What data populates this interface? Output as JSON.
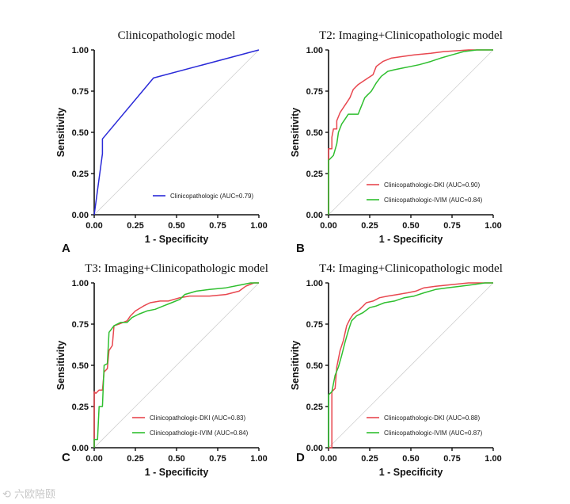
{
  "chart_data": [
    {
      "type": "line",
      "panel_label": "A",
      "title": "Clinicopathologic model",
      "xlabel": "1 - Specificity",
      "ylabel": "Sensitivity",
      "xlim": [
        0,
        1
      ],
      "ylim": [
        0,
        1
      ],
      "tick_labels": [
        "0.00",
        "0.25",
        "0.50",
        "0.75",
        "1.00"
      ],
      "legend_position": "bottom-right",
      "series": [
        {
          "name": "Clinicopathologic (AUC=0.79)",
          "color": "#2a2ad8",
          "points": [
            [
              0,
              0
            ],
            [
              0.05,
              0.37
            ],
            [
              0.05,
              0.46
            ],
            [
              0.36,
              0.83
            ],
            [
              1,
              1
            ]
          ]
        }
      ]
    },
    {
      "type": "line",
      "panel_label": "B",
      "title": "T2: Imaging+Clinicopathologic model",
      "xlabel": "1 - Specificity",
      "ylabel": "Sensitivity",
      "xlim": [
        0,
        1
      ],
      "ylim": [
        0,
        1
      ],
      "tick_labels": [
        "0.00",
        "0.25",
        "0.50",
        "0.75",
        "1.00"
      ],
      "legend_position": "bottom-right",
      "series": [
        {
          "name": "Clinicopathologic-DKI (AUC=0.90)",
          "color": "#e8474f",
          "points": [
            [
              0,
              0
            ],
            [
              0,
              0.4
            ],
            [
              0.02,
              0.4
            ],
            [
              0.02,
              0.47
            ],
            [
              0.03,
              0.52
            ],
            [
              0.05,
              0.52
            ],
            [
              0.05,
              0.57
            ],
            [
              0.07,
              0.62
            ],
            [
              0.09,
              0.65
            ],
            [
              0.11,
              0.68
            ],
            [
              0.13,
              0.71
            ],
            [
              0.15,
              0.76
            ],
            [
              0.18,
              0.79
            ],
            [
              0.21,
              0.81
            ],
            [
              0.24,
              0.83
            ],
            [
              0.27,
              0.85
            ],
            [
              0.29,
              0.9
            ],
            [
              0.33,
              0.93
            ],
            [
              0.38,
              0.95
            ],
            [
              0.45,
              0.96
            ],
            [
              0.52,
              0.97
            ],
            [
              0.62,
              0.98
            ],
            [
              0.7,
              0.99
            ],
            [
              0.85,
              1.0
            ],
            [
              1,
              1
            ]
          ]
        },
        {
          "name": "Clinicopathologic-IVIM (AUC=0.84)",
          "color": "#2fbf2f",
          "points": [
            [
              0,
              0
            ],
            [
              0,
              0.33
            ],
            [
              0.03,
              0.36
            ],
            [
              0.05,
              0.43
            ],
            [
              0.06,
              0.5
            ],
            [
              0.08,
              0.55
            ],
            [
              0.1,
              0.58
            ],
            [
              0.12,
              0.61
            ],
            [
              0.18,
              0.61
            ],
            [
              0.2,
              0.66
            ],
            [
              0.22,
              0.71
            ],
            [
              0.24,
              0.73
            ],
            [
              0.26,
              0.75
            ],
            [
              0.29,
              0.8
            ],
            [
              0.32,
              0.84
            ],
            [
              0.36,
              0.87
            ],
            [
              0.4,
              0.88
            ],
            [
              0.45,
              0.89
            ],
            [
              0.5,
              0.9
            ],
            [
              0.55,
              0.91
            ],
            [
              0.62,
              0.93
            ],
            [
              0.68,
              0.95
            ],
            [
              0.75,
              0.97
            ],
            [
              0.82,
              0.99
            ],
            [
              0.9,
              1.0
            ],
            [
              1,
              1
            ]
          ]
        }
      ]
    },
    {
      "type": "line",
      "panel_label": "C",
      "title": "T3: Imaging+Clinicopathologic model",
      "xlabel": "1 - Specificity",
      "ylabel": "Sensitivity",
      "xlim": [
        0,
        1
      ],
      "ylim": [
        0,
        1
      ],
      "tick_labels": [
        "0.00",
        "0.25",
        "0.50",
        "0.75",
        "1.00"
      ],
      "legend_position": "bottom-right",
      "series": [
        {
          "name": "Clinicopathologic-DKI (AUC=0.83)",
          "color": "#e8474f",
          "points": [
            [
              0,
              0
            ],
            [
              0,
              0.34
            ],
            [
              0.01,
              0.33
            ],
            [
              0.03,
              0.35
            ],
            [
              0.05,
              0.35
            ],
            [
              0.06,
              0.46
            ],
            [
              0.08,
              0.48
            ],
            [
              0.09,
              0.59
            ],
            [
              0.11,
              0.62
            ],
            [
              0.12,
              0.74
            ],
            [
              0.15,
              0.75
            ],
            [
              0.2,
              0.77
            ],
            [
              0.22,
              0.8
            ],
            [
              0.25,
              0.83
            ],
            [
              0.3,
              0.86
            ],
            [
              0.34,
              0.88
            ],
            [
              0.4,
              0.89
            ],
            [
              0.45,
              0.89
            ],
            [
              0.52,
              0.91
            ],
            [
              0.58,
              0.92
            ],
            [
              0.7,
              0.92
            ],
            [
              0.8,
              0.93
            ],
            [
              0.88,
              0.95
            ],
            [
              0.92,
              0.98
            ],
            [
              0.97,
              1.0
            ],
            [
              1,
              1
            ]
          ]
        },
        {
          "name": "Clinicopathologic-IVIM (AUC=0.84)",
          "color": "#2fbf2f",
          "points": [
            [
              0,
              0
            ],
            [
              0,
              0.05
            ],
            [
              0.02,
              0.05
            ],
            [
              0.03,
              0.25
            ],
            [
              0.05,
              0.25
            ],
            [
              0.06,
              0.5
            ],
            [
              0.08,
              0.51
            ],
            [
              0.09,
              0.7
            ],
            [
              0.12,
              0.74
            ],
            [
              0.16,
              0.76
            ],
            [
              0.2,
              0.76
            ],
            [
              0.23,
              0.79
            ],
            [
              0.27,
              0.81
            ],
            [
              0.32,
              0.83
            ],
            [
              0.37,
              0.84
            ],
            [
              0.42,
              0.86
            ],
            [
              0.47,
              0.88
            ],
            [
              0.52,
              0.9
            ],
            [
              0.55,
              0.93
            ],
            [
              0.62,
              0.95
            ],
            [
              0.7,
              0.96
            ],
            [
              0.8,
              0.97
            ],
            [
              0.9,
              0.99
            ],
            [
              0.95,
              1.0
            ],
            [
              1,
              1
            ]
          ]
        }
      ]
    },
    {
      "type": "line",
      "panel_label": "D",
      "title": "T4: Imaging+Clinicopathologic model",
      "xlabel": "1 - Specificity",
      "ylabel": "Sensitivity",
      "xlim": [
        0,
        1
      ],
      "ylim": [
        0,
        1
      ],
      "tick_labels": [
        "0.00",
        "0.25",
        "0.50",
        "0.75",
        "1.00"
      ],
      "legend_position": "bottom-right",
      "series": [
        {
          "name": "Clinicopathologic-DKI (AUC=0.88)",
          "color": "#e8474f",
          "points": [
            [
              0,
              0
            ],
            [
              0.02,
              0
            ],
            [
              0.02,
              0.34
            ],
            [
              0.04,
              0.36
            ],
            [
              0.05,
              0.49
            ],
            [
              0.07,
              0.59
            ],
            [
              0.09,
              0.65
            ],
            [
              0.11,
              0.74
            ],
            [
              0.13,
              0.78
            ],
            [
              0.15,
              0.81
            ],
            [
              0.19,
              0.84
            ],
            [
              0.23,
              0.88
            ],
            [
              0.27,
              0.89
            ],
            [
              0.31,
              0.91
            ],
            [
              0.36,
              0.92
            ],
            [
              0.42,
              0.93
            ],
            [
              0.48,
              0.94
            ],
            [
              0.53,
              0.95
            ],
            [
              0.58,
              0.97
            ],
            [
              0.65,
              0.98
            ],
            [
              0.75,
              0.99
            ],
            [
              0.85,
              1.0
            ],
            [
              1,
              1
            ]
          ]
        },
        {
          "name": "Clinicopathologic-IVIM (AUC=0.87)",
          "color": "#2fbf2f",
          "points": [
            [
              0,
              0
            ],
            [
              0,
              0.32
            ],
            [
              0.02,
              0.34
            ],
            [
              0.04,
              0.44
            ],
            [
              0.06,
              0.49
            ],
            [
              0.08,
              0.56
            ],
            [
              0.1,
              0.64
            ],
            [
              0.12,
              0.71
            ],
            [
              0.14,
              0.77
            ],
            [
              0.17,
              0.8
            ],
            [
              0.21,
              0.82
            ],
            [
              0.25,
              0.85
            ],
            [
              0.29,
              0.86
            ],
            [
              0.34,
              0.88
            ],
            [
              0.4,
              0.89
            ],
            [
              0.46,
              0.91
            ],
            [
              0.52,
              0.92
            ],
            [
              0.58,
              0.94
            ],
            [
              0.65,
              0.96
            ],
            [
              0.72,
              0.97
            ],
            [
              0.8,
              0.98
            ],
            [
              0.88,
              0.99
            ],
            [
              0.95,
              1.0
            ],
            [
              1,
              1
            ]
          ]
        }
      ]
    }
  ],
  "watermark": "六欧陪颐"
}
